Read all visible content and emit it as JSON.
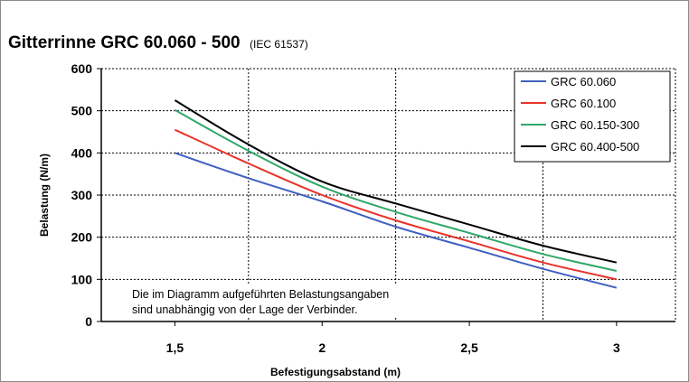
{
  "chart_data": {
    "type": "line",
    "title": "Gitterrinne GRC 60.060 - 500",
    "subtitle": "(IEC 61537)",
    "xlabel": "Befestigungsabstand (m)",
    "ylabel": "Belastung (N/m)",
    "xlim": [
      1.25,
      3.2
    ],
    "ylim": [
      0,
      600
    ],
    "x_ticks": [
      "1,5",
      "2",
      "2,5",
      "3"
    ],
    "y_ticks": [
      "0",
      "100",
      "200",
      "300",
      "400",
      "500",
      "600"
    ],
    "grid": "dotted vertical and horizontal",
    "legend_position": "top-right",
    "annotation": [
      "Die im Diagramm aufgeführten Belastungsangaben",
      "sind unabhängig von der Lage der Verbinder."
    ],
    "x": [
      1.5,
      1.75,
      2.0,
      2.25,
      2.5,
      2.75,
      3.0
    ],
    "series": [
      {
        "name": "GRC 60.060",
        "color": "#3f5fbf",
        "values": [
          400,
          340,
          285,
          225,
          175,
          125,
          80
        ]
      },
      {
        "name": "GRC 60.100",
        "color": "#e8332a",
        "values": [
          455,
          375,
          300,
          240,
          190,
          140,
          100
        ]
      },
      {
        "name": "GRC 60.150-300",
        "color": "#2fa86a",
        "values": [
          502,
          405,
          320,
          260,
          210,
          160,
          120
        ]
      },
      {
        "name": "GRC 60.400-500",
        "color": "#000000",
        "values": [
          525,
          420,
          332,
          280,
          230,
          180,
          140
        ]
      }
    ]
  }
}
